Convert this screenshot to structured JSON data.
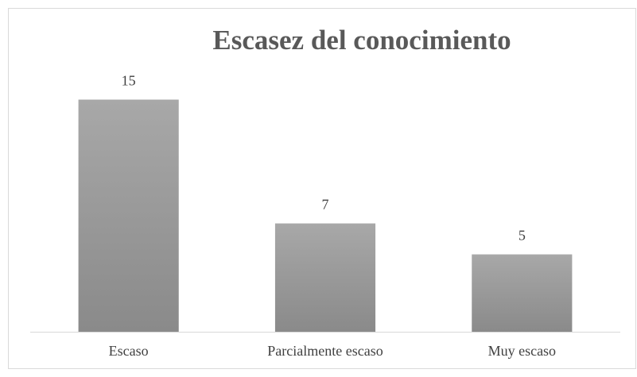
{
  "chart_data": {
    "type": "bar",
    "title": "Escasez del conocimiento",
    "categories": [
      "Escaso",
      "Parcialmente escaso",
      "Muy escaso"
    ],
    "values": [
      15,
      7,
      5
    ],
    "color": "#a0a0a0"
  }
}
